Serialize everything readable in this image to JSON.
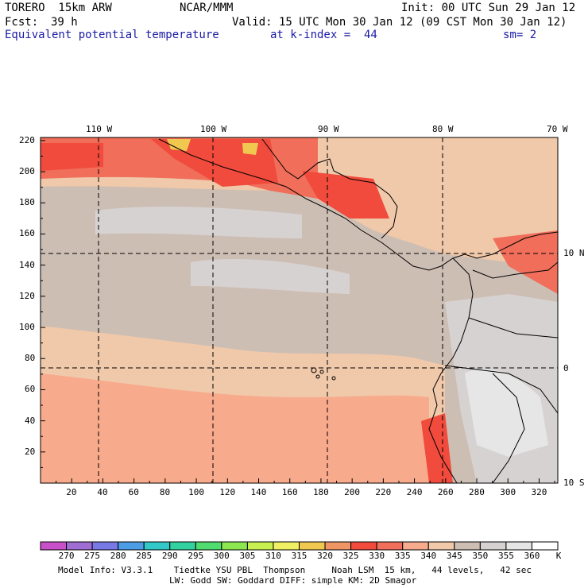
{
  "header": {
    "model": "TORERO  15km ARW",
    "org": "NCAR/MMM",
    "init": "Init: 00 UTC Sun 29 Jan 12",
    "fcst_label": "Fcst:",
    "fcst_value": "39 h",
    "valid": "Valid: 15 UTC Mon 30 Jan 12 (09 CST Mon 30 Jan 12)",
    "field": "Equivalent potential temperature",
    "level": "at k-index =  44",
    "smoothing": "sm= 2"
  },
  "map": {
    "lon_labels": [
      "110 W",
      "100 W",
      "90 W",
      "80 W",
      "70 W"
    ],
    "lat_labels": [
      "10 N",
      "0",
      "10 S"
    ],
    "y_ticks": [
      "220",
      "200",
      "180",
      "160",
      "140",
      "120",
      "100",
      "80",
      "60",
      "40",
      "20"
    ],
    "x_ticks": [
      "20",
      "40",
      "60",
      "80",
      "100",
      "120",
      "140",
      "160",
      "180",
      "200",
      "220",
      "240",
      "260",
      "280",
      "300",
      "320"
    ]
  },
  "colorbar": {
    "labels": [
      "270",
      "275",
      "280",
      "285",
      "290",
      "295",
      "300",
      "305",
      "310",
      "315",
      "320",
      "325",
      "330",
      "335",
      "340",
      "345",
      "350",
      "355",
      "360"
    ],
    "unit": "K",
    "colors": [
      "#c850c8",
      "#a06ed2",
      "#7878e6",
      "#4c9ce6",
      "#32c8c8",
      "#32d2a0",
      "#50dc6e",
      "#8ce650",
      "#c8f050",
      "#f0f064",
      "#f0c850",
      "#f09664",
      "#f04b3c",
      "#f06e5a",
      "#f8aa8c",
      "#f0c8aa",
      "#cdbeb4",
      "#d7d2d2",
      "#e6e6e6",
      "#ffffff"
    ]
  },
  "footer": {
    "line1": "Model Info: V3.3.1    Tiedtke YSU PBL  Thompson     Noah LSM  15 km,   44 levels,   42 sec",
    "line2": "LW: Godd SW: Goddard DIFF: simple KM: 2D Smagor"
  }
}
